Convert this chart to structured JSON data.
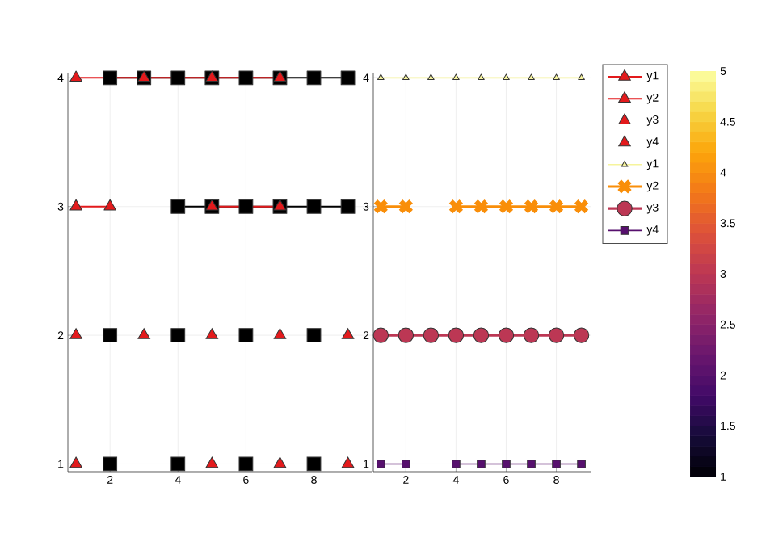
{
  "chart_data": [
    {
      "type": "scatter",
      "xlim": [
        0.76,
        9.7
      ],
      "ylim": [
        0.94,
        4.04
      ],
      "xticks": [
        2,
        4,
        6,
        8
      ],
      "yticks": [
        1,
        2,
        3,
        4
      ],
      "grid": true,
      "legend": "top right",
      "series": [
        {
          "type": "line",
          "color": "#000000",
          "marker": "square",
          "x": [
            2,
            3,
            4,
            5,
            6,
            7,
            8,
            9
          ],
          "values": [
            4,
            4,
            4,
            4,
            4,
            4,
            4,
            4
          ]
        },
        {
          "type": "line",
          "color": "#000000",
          "marker": "square",
          "x": [
            4,
            5,
            6,
            7,
            8,
            9
          ],
          "values": [
            3,
            3,
            3,
            3,
            3,
            3
          ]
        },
        {
          "type": "scatter",
          "color": "#000000",
          "marker": "square",
          "x": [
            2,
            4,
            6,
            8
          ],
          "values": [
            2,
            2,
            2,
            2
          ]
        },
        {
          "type": "scatter",
          "color": "#000000",
          "marker": "square",
          "x": [
            2,
            4,
            6,
            8
          ],
          "values": [
            1,
            1,
            1,
            1
          ]
        },
        {
          "name": "y1",
          "type": "line",
          "color": "#e31a1c",
          "marker": "triangle",
          "x": [
            1,
            3,
            5,
            7
          ],
          "values": [
            4,
            4,
            4,
            4
          ]
        },
        {
          "name": "y2",
          "type": "line",
          "color": "#e31a1c",
          "marker": "triangle",
          "x": [
            1,
            2,
            3,
            5,
            7
          ],
          "values": [
            3,
            3,
            null,
            3,
            3
          ]
        },
        {
          "name": "y3",
          "type": "scatter",
          "color": "#e31a1c",
          "marker": "triangle",
          "x": [
            1,
            3,
            5,
            7,
            9
          ],
          "values": [
            2,
            2,
            2,
            2,
            2
          ]
        },
        {
          "name": "y4",
          "type": "scatter",
          "color": "#e31a1c",
          "marker": "triangle",
          "x": [
            1,
            5,
            7,
            9
          ],
          "values": [
            1,
            1,
            1,
            1
          ]
        }
      ]
    },
    {
      "type": "line",
      "xlim": [
        0.7,
        9.4
      ],
      "ylim": [
        0.94,
        4.04
      ],
      "xticks": [
        2,
        4,
        6,
        8
      ],
      "yticks": [
        1,
        2,
        3,
        4
      ],
      "grid": true,
      "legend": "top right",
      "clim": [
        1,
        5
      ],
      "cticks": [
        1,
        1.5,
        2,
        2.5,
        3,
        3.5,
        4,
        4.5,
        5
      ],
      "x": [
        1,
        2,
        3,
        4,
        5,
        6,
        7,
        8,
        9
      ],
      "series": [
        {
          "name": "y1",
          "color": "#f6f49c",
          "marker": "triangle",
          "values": [
            4,
            4,
            4,
            4,
            4,
            4,
            4,
            4,
            4
          ]
        },
        {
          "name": "y2",
          "color": "#f98e09",
          "marker": "cross",
          "values": [
            3,
            3,
            null,
            3,
            3,
            3,
            3,
            3,
            3
          ]
        },
        {
          "name": "y3",
          "color": "#bc3754",
          "marker": "circle",
          "values": [
            2,
            2,
            2,
            2,
            2,
            2,
            2,
            2,
            2
          ]
        },
        {
          "name": "y4",
          "color": "#57106e",
          "marker": "square",
          "values": [
            1,
            1,
            null,
            1,
            1,
            1,
            1,
            1,
            1
          ]
        }
      ]
    }
  ]
}
